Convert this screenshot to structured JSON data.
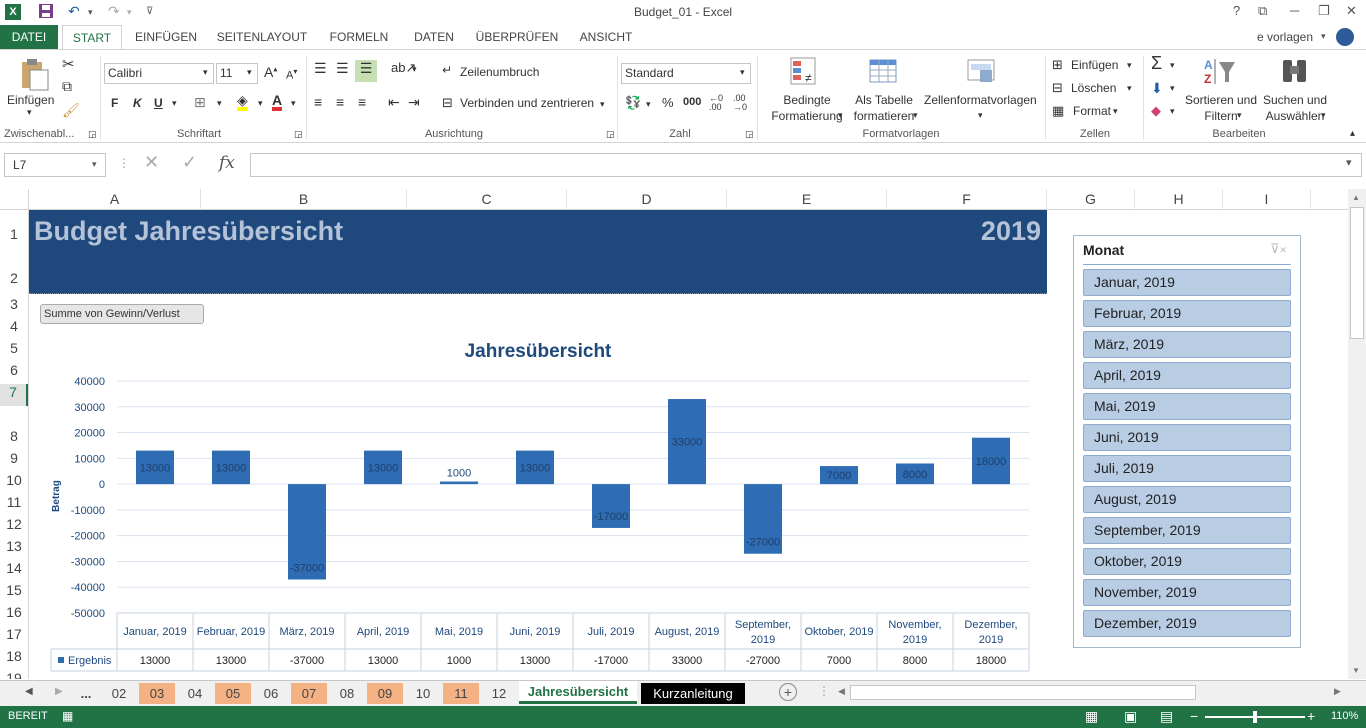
{
  "window": {
    "title": "Budget_01 - Excel",
    "help": "?",
    "user": "e vorlagen"
  },
  "ribbon_tabs": [
    "DATEI",
    "START",
    "EINFÜGEN",
    "SEITENLAYOUT",
    "FORMELN",
    "DATEN",
    "ÜBERPRÜFEN",
    "ANSICHT"
  ],
  "ribbon": {
    "clipboard": {
      "paste": "Einfügen",
      "label": "Zwischenabl..."
    },
    "font": {
      "name": "Calibri",
      "size": "11",
      "bold": "F",
      "italic": "K",
      "underline": "U",
      "label": "Schriftart"
    },
    "alignment": {
      "wrap": "Zeilenumbruch",
      "merge": "Verbinden und zentrieren",
      "label": "Ausrichtung"
    },
    "number": {
      "format": "Standard",
      "percent": "%",
      "thousands": "000",
      "label": "Zahl"
    },
    "styles": {
      "conditional": "Bedingte Formatierung",
      "as_table": "Als Tabelle formatieren",
      "cell_styles": "Zellenformatvorlagen",
      "label": "Formatvorlagen"
    },
    "cells": {
      "insert": "Einfügen",
      "delete": "Löschen",
      "format": "Format",
      "label": "Zellen"
    },
    "editing": {
      "sort": "Sortieren und Filtern",
      "find": "Suchen und Auswählen",
      "label": "Bearbeiten"
    }
  },
  "formula_bar": {
    "name_box": "L7",
    "fx": "fx",
    "formula": ""
  },
  "columns": [
    "A",
    "B",
    "C",
    "D",
    "E",
    "F",
    "G",
    "H",
    "I"
  ],
  "rows": [
    "1",
    "2",
    "3",
    "4",
    "5",
    "6",
    "7",
    "8",
    "9",
    "10",
    "11",
    "12",
    "13",
    "14",
    "15",
    "16",
    "17",
    "18",
    "19"
  ],
  "banner": {
    "title": "Budget Jahresübersicht",
    "year": "2019"
  },
  "pivot_field_button": "Summe von Gewinn/Verlust",
  "chart_data": {
    "type": "bar",
    "title": "Jahresübersicht",
    "ylabel": "Betrag",
    "xlabel": "",
    "categories": [
      "Januar, 2019",
      "Februar, 2019",
      "März, 2019",
      "April, 2019",
      "Mai, 2019",
      "Juni, 2019",
      "Juli, 2019",
      "August, 2019",
      "September, 2019",
      "Oktober, 2019",
      "November, 2019",
      "Dezember, 2019"
    ],
    "series": [
      {
        "name": "Ergebnis",
        "values": [
          13000,
          13000,
          -37000,
          13000,
          1000,
          13000,
          -17000,
          33000,
          -27000,
          7000,
          8000,
          18000
        ]
      }
    ],
    "ylim": [
      -50000,
      40000
    ],
    "yticks": [
      "40000",
      "30000",
      "20000",
      "10000",
      "0",
      "-10000",
      "-20000",
      "-30000",
      "-40000",
      "-50000"
    ],
    "data_labels": [
      "13000",
      "13000",
      "-37000",
      "13000",
      "1000",
      "13000",
      "-17000",
      "33000",
      "-27000",
      "7000",
      "8000",
      "18000"
    ],
    "legend": "bottom-table",
    "grid": true,
    "bar_color": "#2e6db4"
  },
  "slicer": {
    "title": "Monat",
    "items": [
      "Januar, 2019",
      "Februar, 2019",
      "März, 2019",
      "April, 2019",
      "Mai, 2019",
      "Juni, 2019",
      "Juli, 2019",
      "August, 2019",
      "September, 2019",
      "Oktober, 2019",
      "November, 2019",
      "Dezember, 2019"
    ]
  },
  "sheet_tabs": {
    "ellipsis": "...",
    "months": [
      "02",
      "03",
      "04",
      "05",
      "06",
      "07",
      "08",
      "09",
      "10",
      "11",
      "12"
    ],
    "highlighted": [
      "03",
      "05",
      "07",
      "09",
      "11"
    ],
    "active": "Jahresübersicht",
    "other": "Kurzanleitung"
  },
  "status": {
    "mode": "BEREIT",
    "zoom": "110%"
  },
  "colors": {
    "excel_green": "#217346",
    "banner_blue": "#1f497d",
    "slicer_item": "#b8cce4",
    "tab_highlight": "#f4b183"
  }
}
